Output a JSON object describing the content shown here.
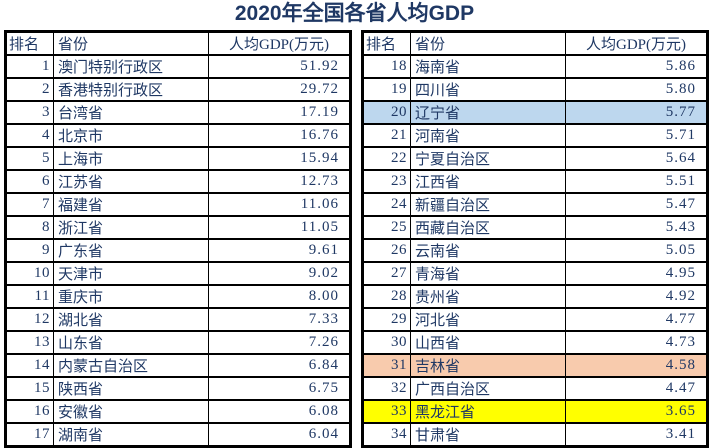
{
  "title": "2020年全国各省人均GDP",
  "colors": {
    "text": "#1F3864",
    "border": "#000000",
    "background": "#FFFFFF",
    "highlight_blue": "#BDD7EE",
    "highlight_orange": "#F8CBAD",
    "highlight_yellow": "#FFFF00"
  },
  "chart_data": {
    "type": "table",
    "title": "2020年全国各省人均GDP",
    "columns": {
      "rank": "排名",
      "province": "省份",
      "gdp": "人均GDP(万元)"
    },
    "left_table_rows": [
      {
        "rank": "1",
        "province": "澳门特别行政区",
        "gdp": "51.92"
      },
      {
        "rank": "2",
        "province": "香港特别行政区",
        "gdp": "29.72"
      },
      {
        "rank": "3",
        "province": "台湾省",
        "gdp": "17.19"
      },
      {
        "rank": "4",
        "province": "北京市",
        "gdp": "16.76"
      },
      {
        "rank": "5",
        "province": "上海市",
        "gdp": "15.94"
      },
      {
        "rank": "6",
        "province": "江苏省",
        "gdp": "12.73"
      },
      {
        "rank": "7",
        "province": "福建省",
        "gdp": "11.06"
      },
      {
        "rank": "8",
        "province": "浙江省",
        "gdp": "11.05"
      },
      {
        "rank": "9",
        "province": "广东省",
        "gdp": "9.61"
      },
      {
        "rank": "10",
        "province": "天津市",
        "gdp": "9.02"
      },
      {
        "rank": "11",
        "province": "重庆市",
        "gdp": "8.00"
      },
      {
        "rank": "12",
        "province": "湖北省",
        "gdp": "7.33"
      },
      {
        "rank": "13",
        "province": "山东省",
        "gdp": "7.26"
      },
      {
        "rank": "14",
        "province": "内蒙古自治区",
        "gdp": "6.84"
      },
      {
        "rank": "15",
        "province": "陕西省",
        "gdp": "6.75"
      },
      {
        "rank": "16",
        "province": "安徽省",
        "gdp": "6.08"
      },
      {
        "rank": "17",
        "province": "湖南省",
        "gdp": "6.04"
      }
    ],
    "right_table_rows": [
      {
        "rank": "18",
        "province": "海南省",
        "gdp": "5.86"
      },
      {
        "rank": "19",
        "province": "四川省",
        "gdp": "5.80"
      },
      {
        "rank": "20",
        "province": "辽宁省",
        "gdp": "5.77",
        "highlight": "blue"
      },
      {
        "rank": "21",
        "province": "河南省",
        "gdp": "5.71"
      },
      {
        "rank": "22",
        "province": "宁夏自治区",
        "gdp": "5.64"
      },
      {
        "rank": "23",
        "province": "江西省",
        "gdp": "5.51"
      },
      {
        "rank": "24",
        "province": "新疆自治区",
        "gdp": "5.47"
      },
      {
        "rank": "25",
        "province": "西藏自治区",
        "gdp": "5.43"
      },
      {
        "rank": "26",
        "province": "云南省",
        "gdp": "5.05"
      },
      {
        "rank": "27",
        "province": "青海省",
        "gdp": "4.95"
      },
      {
        "rank": "28",
        "province": "贵州省",
        "gdp": "4.92"
      },
      {
        "rank": "29",
        "province": "河北省",
        "gdp": "4.77"
      },
      {
        "rank": "30",
        "province": "山西省",
        "gdp": "4.73"
      },
      {
        "rank": "31",
        "province": "吉林省",
        "gdp": "4.58",
        "highlight": "orange"
      },
      {
        "rank": "32",
        "province": "广西自治区",
        "gdp": "4.47"
      },
      {
        "rank": "33",
        "province": "黑龙江省",
        "gdp": "3.65",
        "highlight": "yellow"
      },
      {
        "rank": "34",
        "province": "甘肃省",
        "gdp": "3.41"
      }
    ]
  }
}
